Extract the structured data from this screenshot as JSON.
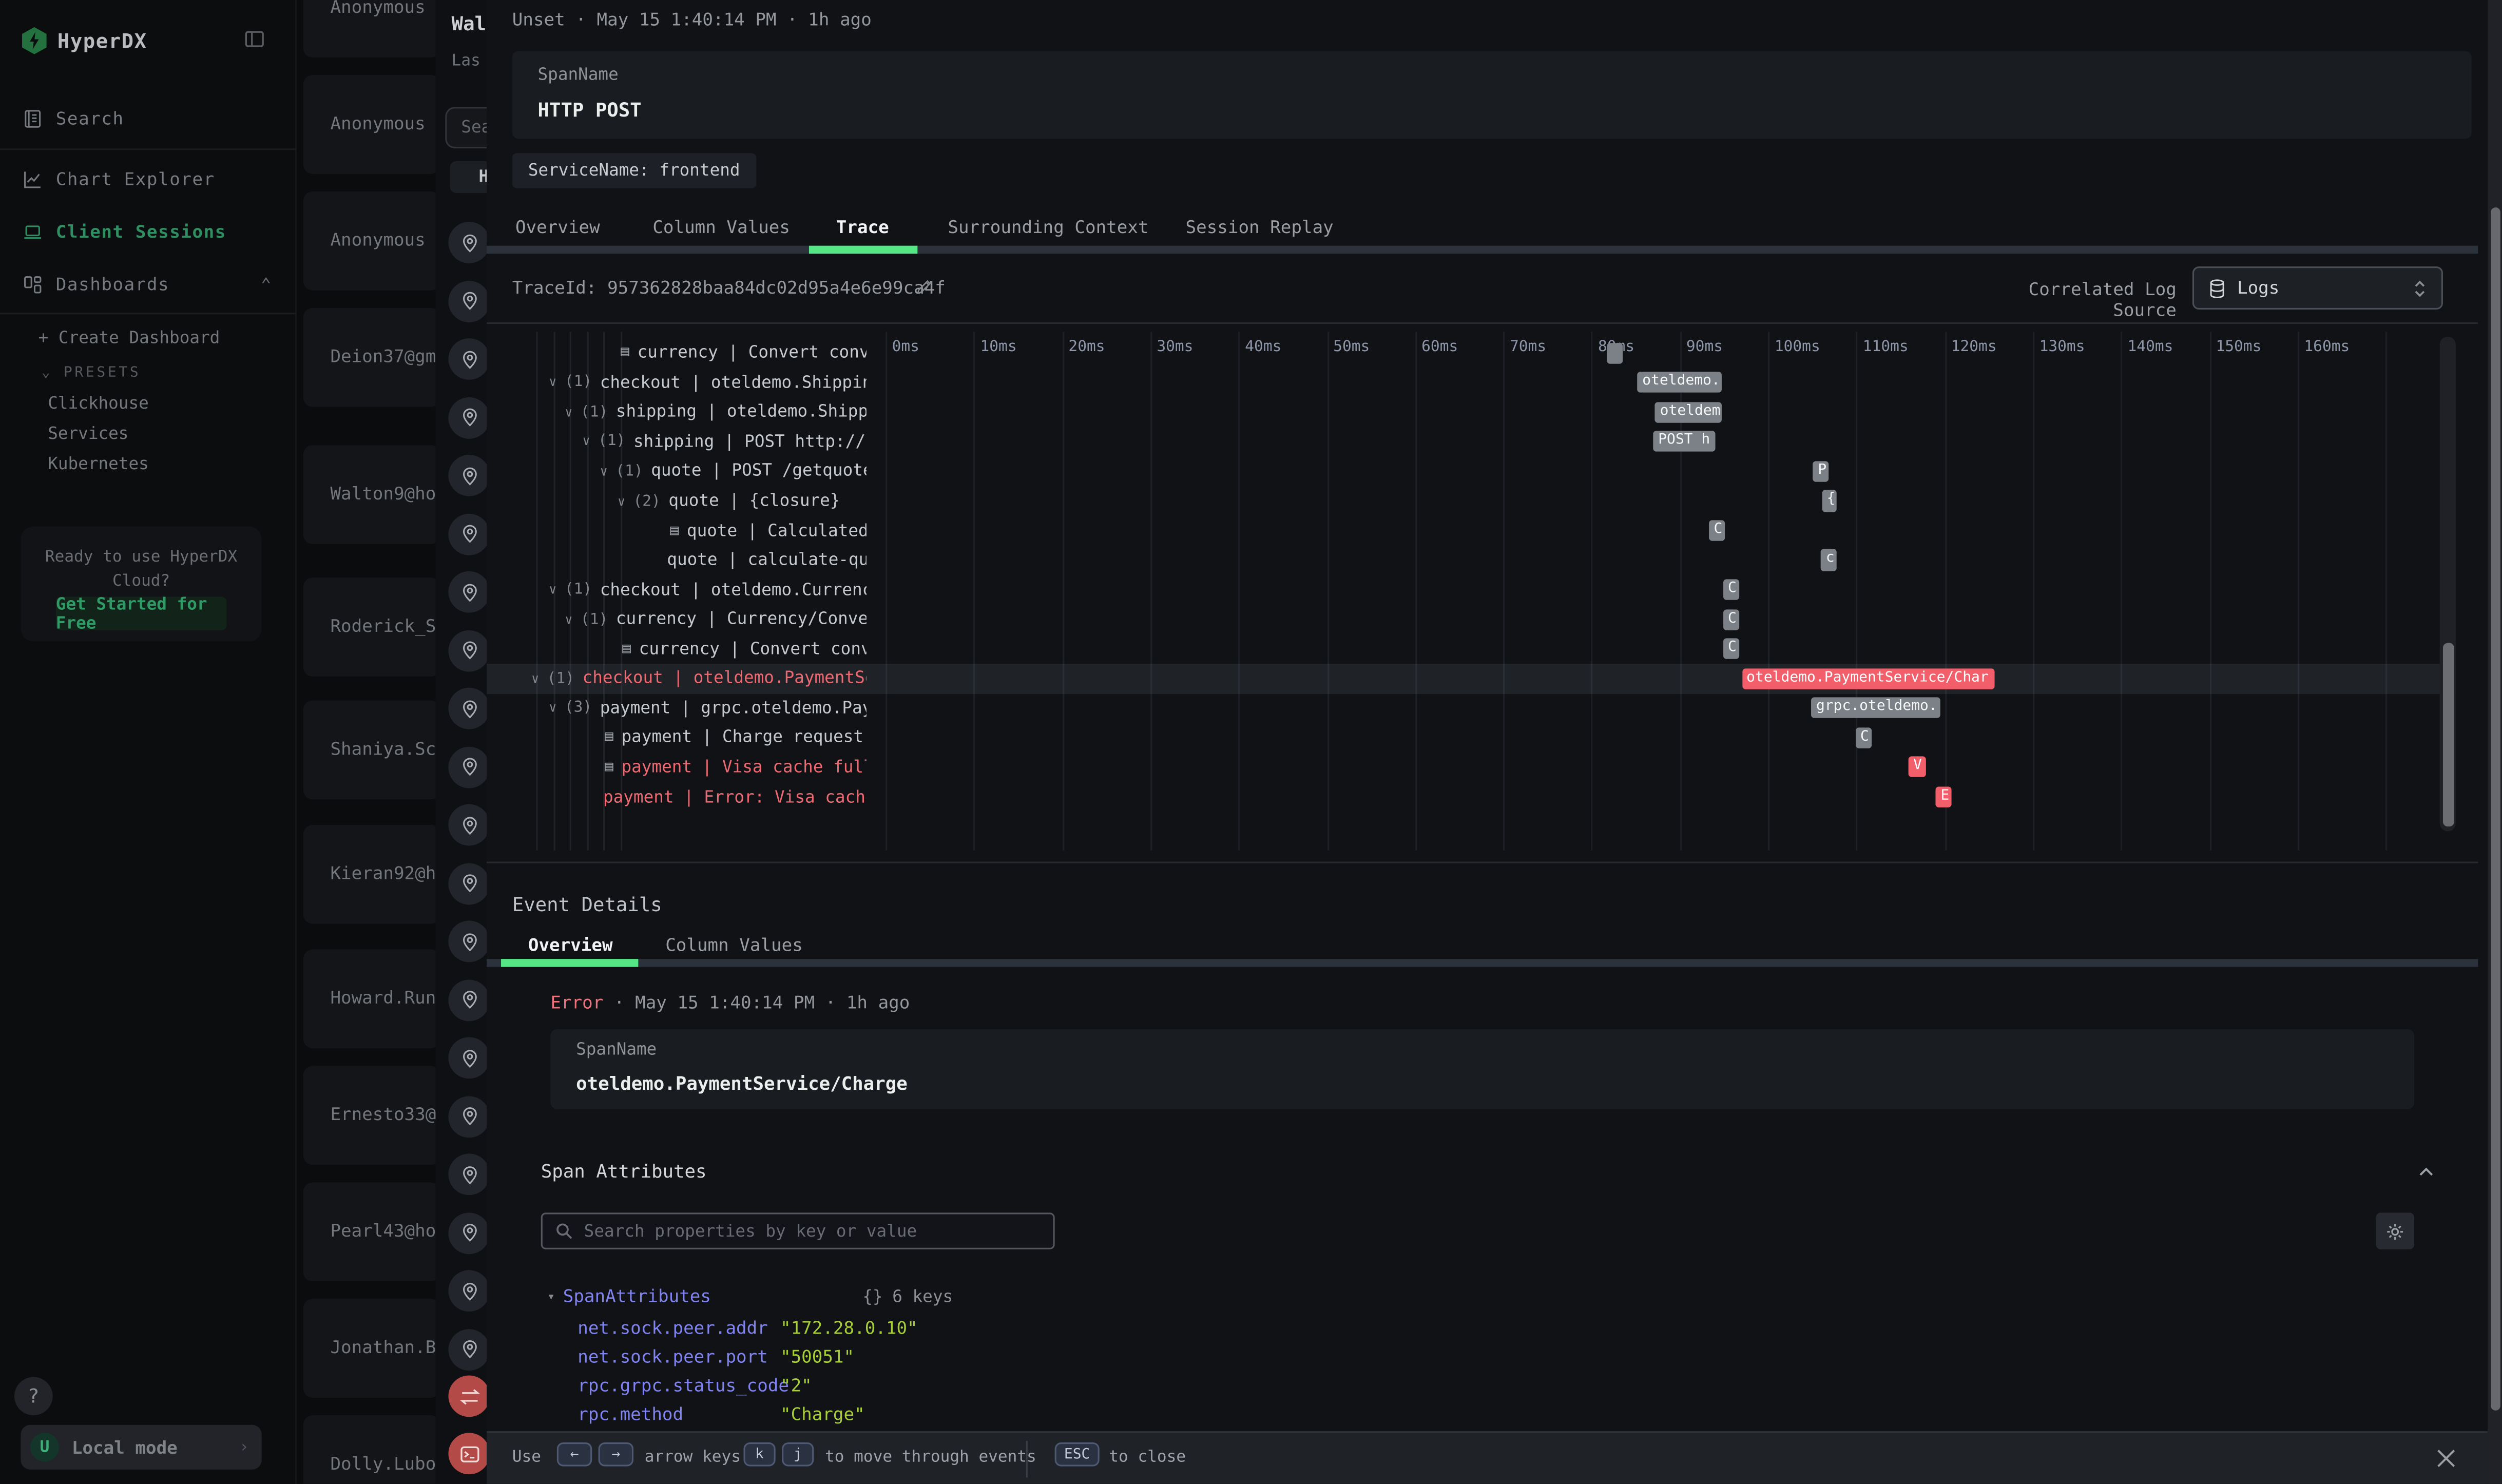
{
  "sidebar": {
    "logo": "HyperDX",
    "items": [
      {
        "label": "Search",
        "icon": "journal-icon",
        "active": false
      },
      {
        "label": "Chart Explorer",
        "icon": "chart-icon",
        "active": false
      },
      {
        "label": "Client Sessions",
        "icon": "laptop-icon",
        "active": true
      },
      {
        "label": "Dashboards",
        "icon": "grid-icon",
        "active": false,
        "chevron": "up"
      }
    ],
    "create_dashboard": "+ Create Dashboard",
    "presets_label": "PRESETS",
    "presets": [
      "Clickhouse",
      "Services",
      "Kubernetes"
    ],
    "cloud_line1": "Ready to use HyperDX",
    "cloud_line2": "Cloud?",
    "cloud_cta": "Get Started for Free",
    "help": "?",
    "avatar": "U",
    "local_mode": "Local mode"
  },
  "sessions": {
    "items": [
      "Anonymous",
      "Anonymous",
      "Anonymous",
      "Deion37@gm",
      "Walton9@ho",
      "Roderick_S",
      "Shaniya.Sc",
      "Kieran92@h",
      "Howard.Run",
      "Ernesto33@",
      "Pearl43@ho",
      "Jonathan.B",
      "Dolly.Lubo"
    ],
    "panel": {
      "title": "Wal",
      "subtitle": "Las",
      "search_placeholder": "Sea",
      "button": "H",
      "pin_count": 20
    }
  },
  "modal": {
    "header": {
      "status": "Unset",
      "time": "May 15 1:40:14 PM",
      "ago": "1h ago"
    },
    "span_card": {
      "label": "SpanName",
      "value": "HTTP POST"
    },
    "service_chip": "ServiceName: frontend",
    "tabs": [
      {
        "label": "Overview",
        "active": false
      },
      {
        "label": "Column Values",
        "active": false
      },
      {
        "label": "Trace",
        "active": true
      },
      {
        "label": "Surrounding Context",
        "active": false
      },
      {
        "label": "Session Replay",
        "active": false
      }
    ],
    "trace_id_label": "TraceId:",
    "trace_id": "957362828baa84dc02d95a4e6e99ca4f",
    "correlated_label": "Correlated Log Source",
    "correlated_value": "Logs",
    "timeline_ticks": [
      "0ms",
      "10ms",
      "20ms",
      "30ms",
      "40ms",
      "50ms",
      "60ms",
      "70ms",
      "80ms",
      "90ms",
      "100ms",
      "110ms",
      "120ms",
      "130ms",
      "140ms",
      "150ms",
      "160ms"
    ],
    "spans": [
      {
        "indent": 84,
        "icon": true,
        "text": "currency | Convert convers…",
        "bar": {
          "s": 81.7,
          "e": 83.5,
          "label": ""
        }
      },
      {
        "indent": 39,
        "chevron": true,
        "count": "(1)",
        "text": "checkout | oteldemo.ShippingSe…",
        "bar": {
          "s": 85.2,
          "e": 94.8,
          "label": "oteldemo."
        }
      },
      {
        "indent": 49,
        "chevron": true,
        "count": "(1)",
        "text": "shipping | oteldemo.Shipping…",
        "bar": {
          "s": 87.2,
          "e": 94.8,
          "label": "oteldem"
        }
      },
      {
        "indent": 60,
        "chevron": true,
        "count": "(1)",
        "text": "shipping | POST http://quo…",
        "bar": {
          "s": 87.0,
          "e": 94.0,
          "label": "POST h"
        }
      },
      {
        "indent": 71,
        "chevron": true,
        "count": "(1)",
        "text": "quote | POST /getquote",
        "bar": {
          "s": 105.1,
          "e": 106.8,
          "label": "P"
        }
      },
      {
        "indent": 82,
        "chevron": true,
        "count": "(2)",
        "text": "quote | {closure}",
        "bar": {
          "s": 106.1,
          "e": 107.8,
          "label": "{"
        }
      },
      {
        "indent": 115,
        "icon": true,
        "text": "quote | Calculated q…",
        "bar": {
          "s": 93.3,
          "e": 95.1,
          "label": "C"
        }
      },
      {
        "indent": 113,
        "text": "quote | calculate-quote",
        "bar": {
          "s": 106.0,
          "e": 107.7,
          "label": "c"
        }
      },
      {
        "indent": 39,
        "chevron": true,
        "count": "(1)",
        "text": "checkout | oteldemo.CurrencySe…",
        "bar": {
          "s": 94.9,
          "e": 96.7,
          "label": "C"
        }
      },
      {
        "indent": 49,
        "chevron": true,
        "count": "(1)",
        "text": "currency | Currency/Convert",
        "bar": {
          "s": 94.9,
          "e": 96.7,
          "label": "C"
        }
      },
      {
        "indent": 85,
        "icon": true,
        "text": "currency | Convert convers…",
        "bar": {
          "s": 94.9,
          "e": 96.7,
          "label": "C"
        }
      },
      {
        "indent": 28,
        "chevron": true,
        "count": "(1)",
        "text": "checkout | oteldemo.PaymentServi…",
        "red": true,
        "selected": true,
        "bar": {
          "s": 97.0,
          "e": 125.6,
          "red": true,
          "label": "oteldemo.PaymentService/Char"
        }
      },
      {
        "indent": 39,
        "chevron": true,
        "count": "(3)",
        "text": "payment | grpc.oteldemo.Paymen…",
        "bar": {
          "s": 104.9,
          "e": 119.6,
          "label": "grpc.oteldemo."
        }
      },
      {
        "indent": 74,
        "icon": true,
        "text": "payment | Charge request rec…",
        "bar": {
          "s": 109.9,
          "e": 111.8,
          "label": "C"
        }
      },
      {
        "indent": 74,
        "icon": true,
        "text": "payment | Visa cache full: c…",
        "red": true,
        "bar": {
          "s": 115.9,
          "e": 117.8,
          "red": true,
          "label": "V"
        }
      },
      {
        "indent": 73,
        "text": "payment | Error: Visa cache ful…",
        "red": true,
        "bar": {
          "s": 119.0,
          "e": 120.8,
          "red": true,
          "label": "E"
        }
      }
    ],
    "event_details": {
      "title": "Event Details",
      "tabs": [
        {
          "label": "Overview",
          "active": true
        },
        {
          "label": "Column Values",
          "active": false
        }
      ],
      "status": "Error",
      "time": "· May 15 1:40:14 PM · 1h ago",
      "span_card": {
        "label": "SpanName",
        "value": "oteldemo.PaymentService/Charge"
      }
    },
    "attributes": {
      "title": "Span Attributes",
      "search_placeholder": "Search properties by key or value",
      "root": "SpanAttributes",
      "badge_icon": "{}",
      "badge": "6 keys",
      "rows": [
        {
          "key": "net.sock.peer.addr",
          "value": "\"172.28.0.10\""
        },
        {
          "key": "net.sock.peer.port",
          "value": "\"50051\""
        },
        {
          "key": "rpc.grpc.status_code",
          "value": "\"2\""
        },
        {
          "key": "rpc.method",
          "value": "\"Charge\""
        }
      ]
    },
    "footer": {
      "prefix": "Use",
      "arrow_keys": [
        "←",
        "→"
      ],
      "middle": "arrow keys or",
      "nav_keys": [
        "k",
        "j"
      ],
      "suffix": "to move through events",
      "esc_key": "ESC",
      "esc_label": "to close"
    }
  }
}
